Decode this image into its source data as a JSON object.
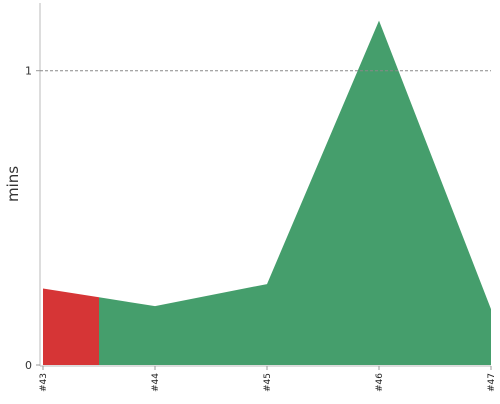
{
  "chart_data": {
    "type": "area",
    "title": "",
    "xlabel": "",
    "ylabel": "mins",
    "categories": [
      "#43",
      "#44",
      "#45",
      "#46",
      "#47"
    ],
    "values": [
      0.26,
      0.2,
      0.275,
      1.17,
      0.19
    ],
    "failed_until": 0.5,
    "ylim": [
      0,
      1.23
    ],
    "yticks": [
      {
        "value": 0,
        "label": "0"
      },
      {
        "value": 1,
        "label": "1"
      }
    ],
    "reference_line": 1,
    "colors": {
      "success": "#459e6c",
      "failure": "#d63536",
      "axis": "#bbbbbb",
      "reference": "#888888"
    },
    "grid": false,
    "legend": "none"
  }
}
